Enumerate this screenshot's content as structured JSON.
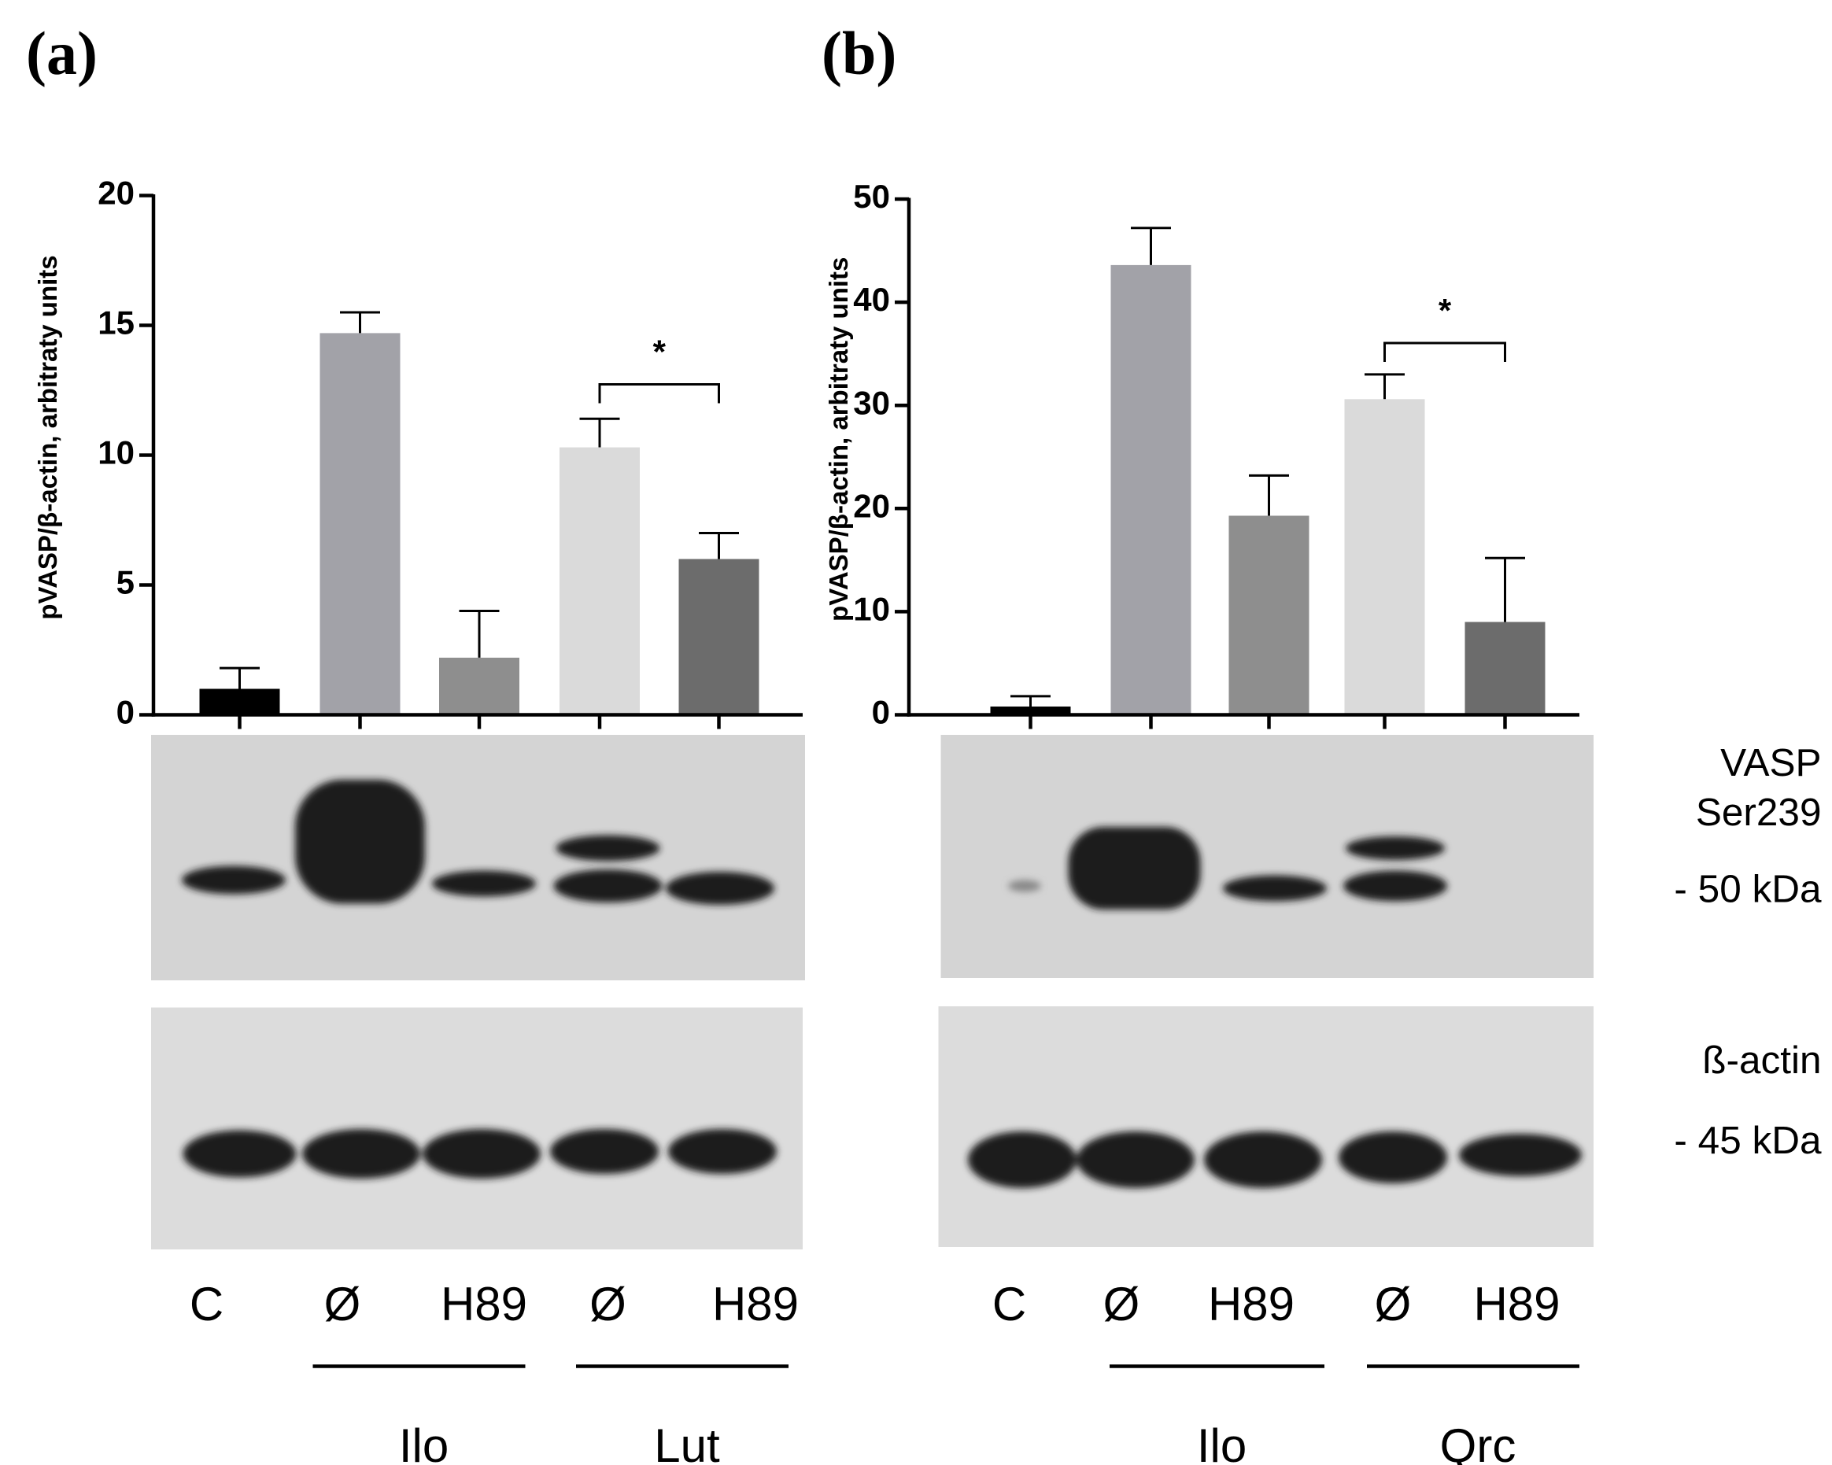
{
  "chart_data": [
    {
      "type": "bar",
      "panel_label": "(a)",
      "y_label": "pVASP/β-actin, arbitraty units",
      "categories": [
        "C",
        "Ø",
        "H89",
        "Ø",
        "H89"
      ],
      "groups": [
        "Ilo",
        "Lut"
      ],
      "values": [
        1.0,
        14.7,
        2.2,
        10.3,
        6.0
      ],
      "errors": [
        0.8,
        0.8,
        1.8,
        1.1,
        1.0
      ],
      "colors": [
        "#000000",
        "#a2a2a8",
        "#8e8e8e",
        "#dadada",
        "#6c6c6c"
      ],
      "ylim": [
        0,
        20
      ],
      "yticks": [
        0,
        5,
        10,
        15,
        20
      ],
      "annotation": "*"
    },
    {
      "type": "bar",
      "panel_label": "(b)",
      "y_label": "pVASP/β-actin, arbitraty units",
      "categories": [
        "C",
        "Ø",
        "H89",
        "Ø",
        "H89"
      ],
      "groups": [
        "Ilo",
        "Qrc"
      ],
      "values": [
        0.8,
        43.6,
        19.3,
        30.6,
        9.0
      ],
      "errors": [
        1.0,
        3.6,
        3.9,
        2.4,
        6.2
      ],
      "colors": [
        "#000000",
        "#a2a2a8",
        "#8e8e8e",
        "#dadada",
        "#6c6c6c"
      ],
      "ylim": [
        0,
        50
      ],
      "yticks": [
        0,
        10,
        20,
        30,
        40,
        50
      ],
      "annotation": "*"
    }
  ],
  "blot_labels": [
    "VASP",
    "Ser239",
    "- 50 kDa",
    "ß-actin",
    "- 45 kDa"
  ]
}
